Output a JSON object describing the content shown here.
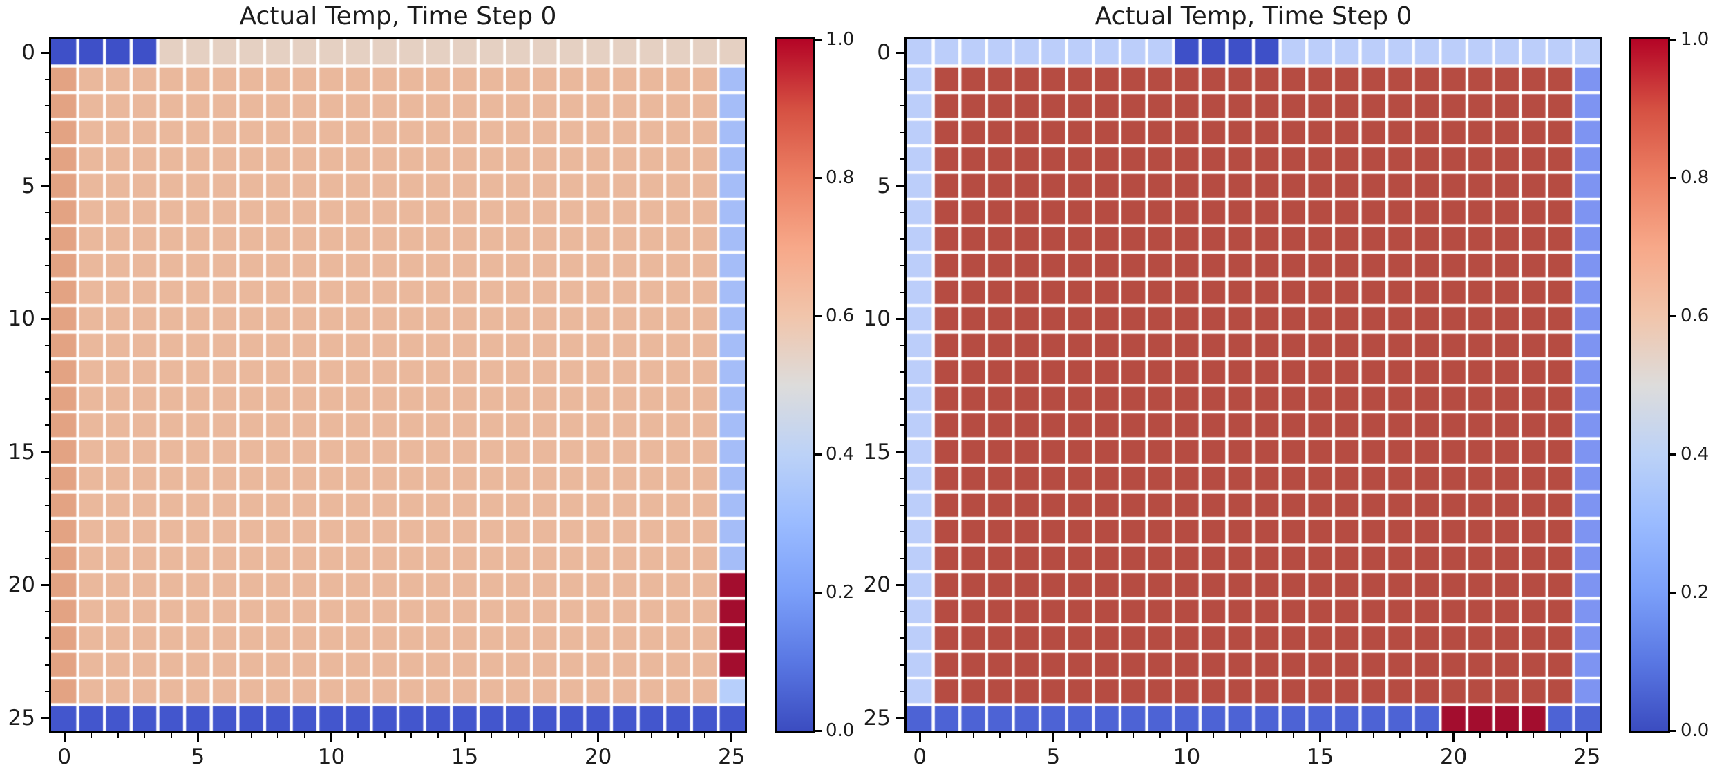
{
  "figure": {
    "background": "#ffffff"
  },
  "chart_data": [
    {
      "type": "heatmap",
      "panel": "left",
      "title": "Actual Temp, Time Step 0",
      "rows": 26,
      "cols": 26,
      "x_tick_labels": [
        "0",
        "5",
        "10",
        "15",
        "20",
        "25"
      ],
      "y_tick_labels": [
        "0",
        "5",
        "10",
        "15",
        "20",
        "25"
      ],
      "x_tick_positions": [
        0,
        5,
        10,
        15,
        20,
        25
      ],
      "y_tick_positions": [
        0,
        5,
        10,
        15,
        20,
        25
      ],
      "value_range": [
        0.0,
        1.0
      ],
      "colormap": "coolwarm",
      "grid_lines": "white",
      "base_cell": {
        "value": 0.62,
        "color": "#eab89c"
      },
      "cell_regions": [
        {
          "label": "left-column-warm",
          "row_start": 1,
          "row_end": 24,
          "col_start": 0,
          "col_end": 0,
          "value": 0.68,
          "color": "#e3a383"
        },
        {
          "label": "top-row-neutral",
          "row_start": 0,
          "row_end": 0,
          "col_start": 0,
          "col_end": 25,
          "value": 0.55,
          "color": "#e5d0c2"
        },
        {
          "label": "top-left-cold-block",
          "row_start": 0,
          "row_end": 0,
          "col_start": 0,
          "col_end": 3,
          "value": 0.03,
          "color": "#3e50c8"
        },
        {
          "label": "right-column-cool",
          "row_start": 1,
          "row_end": 24,
          "col_start": 25,
          "col_end": 25,
          "value": 0.32,
          "color": "#a5bdf8"
        },
        {
          "label": "right-column-row24-cool",
          "row_start": 24,
          "row_end": 24,
          "col_start": 25,
          "col_end": 25,
          "value": 0.38,
          "color": "#b7cffb"
        },
        {
          "label": "right-column-hot-block",
          "row_start": 20,
          "row_end": 23,
          "col_start": 25,
          "col_end": 25,
          "value": 1.0,
          "color": "#a30d2e"
        },
        {
          "label": "bottom-row-cold",
          "row_start": 25,
          "row_end": 25,
          "col_start": 0,
          "col_end": 25,
          "value": 0.06,
          "color": "#4356cd"
        }
      ],
      "colorbar": {
        "tick_labels": [
          "1.0",
          "0.8",
          "0.6",
          "0.4",
          "0.2",
          "0.0"
        ],
        "min": 0.0,
        "max": 1.0
      }
    },
    {
      "type": "heatmap",
      "panel": "right",
      "title": "Actual Temp, Time Step 0",
      "rows": 26,
      "cols": 26,
      "x_tick_labels": [
        "0",
        "5",
        "10",
        "15",
        "20",
        "25"
      ],
      "y_tick_labels": [
        "0",
        "5",
        "10",
        "15",
        "20",
        "25"
      ],
      "x_tick_positions": [
        0,
        5,
        10,
        15,
        20,
        25
      ],
      "y_tick_positions": [
        0,
        5,
        10,
        15,
        20,
        25
      ],
      "value_range": [
        0.0,
        1.0
      ],
      "colormap": "coolwarm",
      "grid_lines": "white",
      "base_cell": {
        "value": 0.92,
        "color": "#b64c42"
      },
      "cell_regions": [
        {
          "label": "top-row-cool",
          "row_start": 0,
          "row_end": 0,
          "col_start": 0,
          "col_end": 25,
          "value": 0.38,
          "color": "#bccefa"
        },
        {
          "label": "top-cold-block",
          "row_start": 0,
          "row_end": 0,
          "col_start": 10,
          "col_end": 13,
          "value": 0.03,
          "color": "#3e50c8"
        },
        {
          "label": "left-column-cool",
          "row_start": 1,
          "row_end": 24,
          "col_start": 0,
          "col_end": 0,
          "value": 0.38,
          "color": "#bccefa"
        },
        {
          "label": "right-column-cool",
          "row_start": 1,
          "row_end": 24,
          "col_start": 25,
          "col_end": 25,
          "value": 0.23,
          "color": "#7e94f2"
        },
        {
          "label": "bottom-row-cold",
          "row_start": 25,
          "row_end": 25,
          "col_start": 0,
          "col_end": 25,
          "value": 0.1,
          "color": "#4d63d5"
        },
        {
          "label": "bottom-hot-block",
          "row_start": 25,
          "row_end": 25,
          "col_start": 20,
          "col_end": 23,
          "value": 1.0,
          "color": "#a30d2e"
        }
      ],
      "colorbar": {
        "tick_labels": [
          "1.0",
          "0.8",
          "0.6",
          "0.4",
          "0.2",
          "0.0"
        ],
        "min": 0.0,
        "max": 1.0
      }
    }
  ],
  "colormap_gradient": [
    {
      "t": 1.0,
      "color": "#b40426"
    },
    {
      "t": 0.9,
      "color": "#d55042"
    },
    {
      "t": 0.8,
      "color": "#ec7f63"
    },
    {
      "t": 0.7,
      "color": "#f7a889"
    },
    {
      "t": 0.6,
      "color": "#f1c5ab"
    },
    {
      "t": 0.5,
      "color": "#dddcdb"
    },
    {
      "t": 0.4,
      "color": "#bcd2f7"
    },
    {
      "t": 0.3,
      "color": "#9abbff"
    },
    {
      "t": 0.2,
      "color": "#7b9ff9"
    },
    {
      "t": 0.1,
      "color": "#5977e3"
    },
    {
      "t": 0.0,
      "color": "#3b4cc0"
    }
  ]
}
